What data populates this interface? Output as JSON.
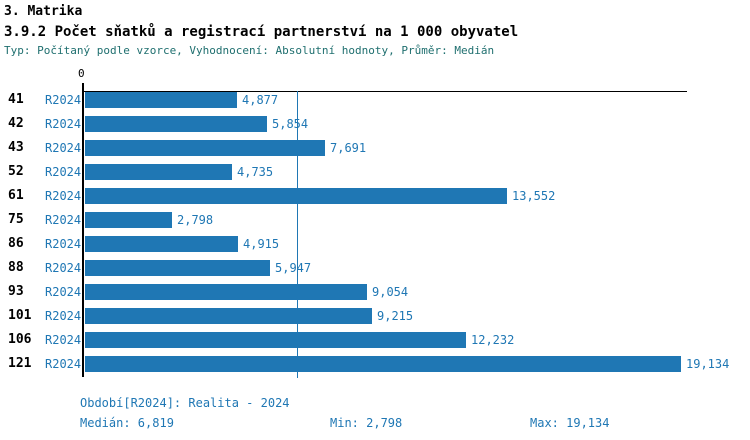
{
  "header": {
    "section_title": "3. Matrika",
    "chart_title": "3.9.2 Počet sňatků a registrací partnerství na 1 000 obyvatel",
    "subtitle": "Typ: Počítaný podle vzorce, Vyhodnocení: Absolutní hodnoty, Průměr: Medián"
  },
  "chart_data": {
    "type": "bar",
    "orientation": "horizontal",
    "title": "3.9.2 Počet sňatků a registrací partnerství na 1 000 obyvatel",
    "axis_zero_label": "0",
    "categories": [
      "41",
      "42",
      "43",
      "52",
      "61",
      "75",
      "86",
      "88",
      "93",
      "101",
      "106",
      "121"
    ],
    "period_label": "R2024",
    "values": [
      4877,
      5854,
      7691,
      4735,
      13552,
      2798,
      4915,
      5947,
      9054,
      9215,
      12232,
      19134
    ],
    "value_labels": [
      "4,877",
      "5,854",
      "7,691",
      "4,735",
      "13,552",
      "2,798",
      "4,915",
      "5,947",
      "9,054",
      "9,215",
      "12,232",
      "19,134"
    ],
    "xlim": [
      0,
      19134
    ],
    "grid": false,
    "legend": false,
    "median_value": 6819,
    "median_line": true,
    "min_value": 2798,
    "max_value": 19134
  },
  "footer": {
    "period_info": "Období[R2024]: Realita - 2024",
    "median_label": "Medián: 6,819",
    "min_label": "Min: 2,798",
    "max_label": "Max: 19,134"
  },
  "colors": {
    "bar": "#1f77b4",
    "value_text": "#1f77b4",
    "median_line": "#1f77b4",
    "subtitle_text": "#1f6f6f",
    "title_text": "#000000",
    "axis": "#000000"
  }
}
